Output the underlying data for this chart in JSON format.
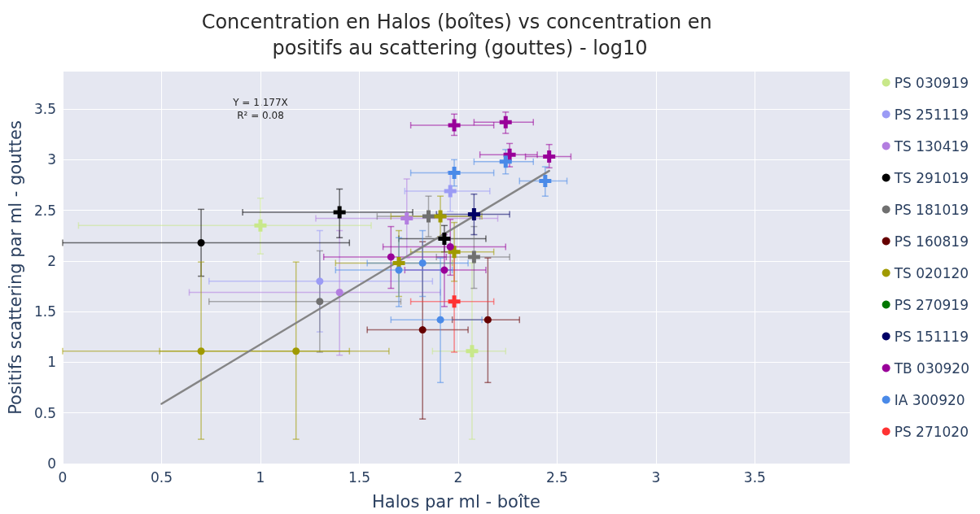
{
  "chart_data": {
    "type": "scatter",
    "title": "Concentration en Halos (boîtes) vs concentration en positifs au scattering (gouttes) - log10",
    "xlabel": "Halos par ml - boîte",
    "ylabel": "Positifs scattering par ml - gouttes",
    "annotations": [
      "Y = 1.177X",
      "R² = 0.08"
    ],
    "xlim": [
      0,
      3.98
    ],
    "xticks": [
      0,
      0.5,
      1,
      1.5,
      2,
      2.5,
      3,
      3.5
    ],
    "ylim": [
      0,
      3.87
    ],
    "yticks": [
      0,
      0.5,
      1,
      1.5,
      2,
      2.5,
      3,
      3.5
    ],
    "grid": true,
    "legend": "right",
    "series": [
      {
        "name": "PS 030919",
        "color": "#c8e88a",
        "marker": "cross",
        "x": [
          1.0,
          2.07
        ],
        "values": [
          2.35,
          1.11
        ],
        "errors": [
          [
            2.07,
            2.62
          ],
          [
            0.24,
            1.98
          ]
        ],
        "xerrors": [
          [
            0.08,
            1.56
          ],
          [
            1.87,
            2.24
          ]
        ]
      },
      {
        "name": "PS 251119",
        "color": "#9b9bf5",
        "marker": "cross",
        "x": [
          1.96
        ],
        "values": [
          2.69
        ],
        "errors": [
          [
            2.49,
            2.88
          ]
        ],
        "xerrors": [
          [
            1.73,
            2.16
          ]
        ]
      },
      {
        "color": "#9b9bf5",
        "marker": "circle",
        "x": [
          1.3
        ],
        "values": [
          1.8
        ],
        "errors": [
          [
            1.3,
            2.3
          ]
        ],
        "xerrors": [
          [
            0.74,
            1.87
          ]
        ]
      },
      {
        "name": "TS 130419",
        "color": "#b37ee0",
        "marker": "cross",
        "x": [
          1.74
        ],
        "values": [
          2.42
        ],
        "errors": [
          [
            2.03,
            2.81
          ]
        ],
        "xerrors": [
          [
            1.28,
            2.2
          ]
        ]
      },
      {
        "color": "#b37ee0",
        "marker": "circle",
        "x": [
          1.4
        ],
        "values": [
          1.69
        ],
        "errors": [
          [
            1.07,
            2.3
          ]
        ],
        "xerrors": [
          [
            0.64,
            1.91
          ]
        ]
      },
      {
        "name": "TS 291019",
        "color": "#000000",
        "marker": "cross",
        "x": [
          1.4,
          1.93
        ],
        "values": [
          2.48,
          2.22
        ],
        "errors": [
          [
            2.23,
            2.71
          ],
          [
            2.09,
            2.35
          ]
        ],
        "xerrors": [
          [
            0.91,
            1.77
          ],
          [
            1.7,
            2.14
          ]
        ]
      },
      {
        "color": "#000000",
        "marker": "circle",
        "x": [
          0.7
        ],
        "values": [
          2.18
        ],
        "errors": [
          [
            1.85,
            2.51
          ]
        ],
        "xerrors": [
          [
            0,
            1.45
          ]
        ]
      },
      {
        "name": "PS 181019",
        "color": "#707070",
        "marker": "cross",
        "x": [
          1.85,
          2.08
        ],
        "values": [
          2.44,
          2.04
        ],
        "errors": [
          [
            2.24,
            2.64
          ],
          [
            1.73,
            2.34
          ]
        ],
        "xerrors": [
          [
            1.59,
            2.11
          ],
          [
            1.89,
            2.26
          ]
        ]
      },
      {
        "color": "#707070",
        "marker": "circle",
        "x": [
          1.3
        ],
        "values": [
          1.6
        ],
        "errors": [
          [
            1.1,
            2.1
          ]
        ],
        "xerrors": [
          [
            0.74,
            1.71
          ]
        ]
      },
      {
        "name": "PS 160819",
        "color": "#660000",
        "marker": "circle",
        "x": [
          1.82,
          2.15
        ],
        "values": [
          1.32,
          1.42
        ],
        "errors": [
          [
            0.44,
            2.19
          ],
          [
            0.8,
            2.03
          ]
        ],
        "xerrors": [
          [
            1.54,
            2.05
          ],
          [
            1.97,
            2.31
          ]
        ]
      },
      {
        "name": "TS 020120",
        "color": "#a09a00",
        "marker": "cross",
        "x": [
          1.91,
          1.98,
          1.7
        ],
        "values": [
          2.44,
          2.09,
          1.98
        ],
        "errors": [
          [
            2.24,
            2.64
          ],
          [
            1.8,
            2.38
          ],
          [
            1.65,
            2.3
          ]
        ],
        "xerrors": [
          [
            1.66,
            2.12
          ],
          [
            1.76,
            2.18
          ],
          [
            1.38,
            1.97
          ]
        ]
      },
      {
        "color": "#a09a00",
        "marker": "circle",
        "x": [
          0.7,
          1.18
        ],
        "values": [
          1.11,
          1.11
        ],
        "errors": [
          [
            0.24,
            1.99
          ],
          [
            0.24,
            1.99
          ]
        ],
        "xerrors": [
          [
            0,
            1.45
          ],
          [
            0.49,
            1.65
          ]
        ]
      },
      {
        "name": "PS 270919",
        "color": "#007700",
        "marker": "circle"
      },
      {
        "name": "PS 151119",
        "color": "#000066",
        "marker": "cross",
        "x": [
          2.08
        ],
        "values": [
          2.46
        ],
        "errors": [
          [
            2.26,
            2.66
          ]
        ],
        "xerrors": [
          [
            1.89,
            2.26
          ]
        ]
      },
      {
        "name": "TB 030920",
        "color": "#990099",
        "marker": "cross",
        "x": [
          1.98,
          2.24,
          2.26,
          2.46
        ],
        "values": [
          3.34,
          3.37,
          3.05,
          3.03
        ],
        "errors": [
          [
            3.24,
            3.45
          ],
          [
            3.26,
            3.47
          ],
          [
            2.93,
            3.16
          ],
          [
            2.92,
            3.15
          ]
        ],
        "xerrors": [
          [
            1.76,
            2.18
          ],
          [
            2.08,
            2.38
          ],
          [
            2.11,
            2.4
          ],
          [
            2.34,
            2.57
          ]
        ]
      },
      {
        "color": "#990099",
        "marker": "circle",
        "x": [
          1.66,
          1.96,
          1.93
        ],
        "values": [
          2.04,
          2.14,
          1.91
        ],
        "errors": [
          [
            1.73,
            2.34
          ],
          [
            1.86,
            2.41
          ],
          [
            1.55,
            2.26
          ]
        ],
        "xerrors": [
          [
            1.32,
            1.94
          ],
          [
            1.62,
            2.24
          ],
          [
            1.73,
            2.14
          ]
        ]
      },
      {
        "name": "IA 300920",
        "color": "#4a8ae8",
        "marker": "cross",
        "x": [
          1.98,
          2.24,
          2.44
        ],
        "values": [
          2.87,
          2.98,
          2.79
        ],
        "errors": [
          [
            2.74,
            3.0
          ],
          [
            2.86,
            3.1
          ],
          [
            2.64,
            2.93
          ]
        ],
        "xerrors": [
          [
            1.76,
            2.18
          ],
          [
            2.08,
            2.38
          ],
          [
            2.31,
            2.55
          ]
        ]
      },
      {
        "color": "#4a8ae8",
        "marker": "circle",
        "x": [
          1.82,
          1.7,
          1.91
        ],
        "values": [
          1.98,
          1.91,
          1.42
        ],
        "errors": [
          [
            1.65,
            2.3
          ],
          [
            1.55,
            2.23
          ],
          [
            0.8,
            2.03
          ]
        ],
        "xerrors": [
          [
            1.54,
            2.05
          ],
          [
            1.38,
            1.97
          ],
          [
            1.66,
            2.12
          ]
        ]
      },
      {
        "name": "PS 271020",
        "color": "#ff3333",
        "marker": "cross",
        "x": [
          1.98
        ],
        "values": [
          1.6
        ],
        "errors": [
          [
            1.1,
            2.1
          ]
        ],
        "xerrors": [
          [
            1.76,
            2.18
          ]
        ]
      },
      {
        "type": "line",
        "color": "#808080",
        "marker": "none",
        "x": [
          0.5,
          2.46
        ],
        "values": [
          0.59,
          2.89
        ]
      }
    ]
  }
}
